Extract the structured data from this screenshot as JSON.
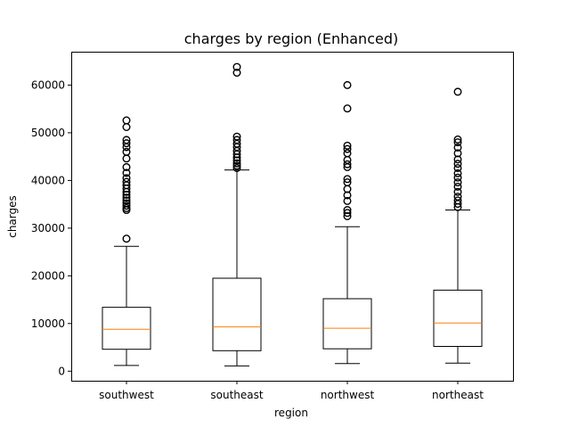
{
  "chart_data": {
    "type": "box",
    "title": "charges by region (Enhanced)",
    "xlabel": "region",
    "ylabel": "charges",
    "ylim": [
      -2000,
      67000
    ],
    "yticks": [
      0,
      10000,
      20000,
      30000,
      40000,
      50000,
      60000
    ],
    "ytick_labels": [
      "0",
      "10000",
      "20000",
      "30000",
      "40000",
      "50000",
      "60000"
    ],
    "grid": false,
    "categories": [
      "southwest",
      "southeast",
      "northwest",
      "northeast"
    ],
    "series": [
      {
        "q1": 4600,
        "median": 8800,
        "q3": 13400,
        "whisker_low": 1200,
        "whisker_high": 26200,
        "outliers": [
          27800,
          33800,
          34200,
          34700,
          35200,
          35800,
          36400,
          37000,
          37600,
          38300,
          39000,
          39700,
          40500,
          41600,
          42800,
          44600,
          46000,
          47000,
          47800,
          48500,
          51200,
          52600
        ]
      },
      {
        "q1": 4300,
        "median": 9300,
        "q3": 19500,
        "whisker_low": 1100,
        "whisker_high": 42200,
        "outliers": [
          42600,
          43100,
          43600,
          44200,
          44800,
          45500,
          46200,
          47000,
          47700,
          48500,
          49200,
          62600,
          63800
        ]
      },
      {
        "q1": 4700,
        "median": 9000,
        "q3": 15200,
        "whisker_low": 1600,
        "whisker_high": 30300,
        "outliers": [
          32500,
          33200,
          33800,
          35700,
          36900,
          38200,
          39600,
          40300,
          42800,
          43400,
          44300,
          45700,
          46600,
          47300,
          55100,
          60000
        ]
      },
      {
        "q1": 5200,
        "median": 10100,
        "q3": 17000,
        "whisker_low": 1700,
        "whisker_high": 33800,
        "outliers": [
          34400,
          35100,
          35800,
          36600,
          37600,
          38700,
          39600,
          40600,
          41500,
          42600,
          43500,
          44400,
          45700,
          46900,
          48000,
          48600,
          58600
        ]
      }
    ],
    "colors": {
      "box": "#000000",
      "median": "#ff7f0e",
      "outlier": "#000000"
    }
  }
}
